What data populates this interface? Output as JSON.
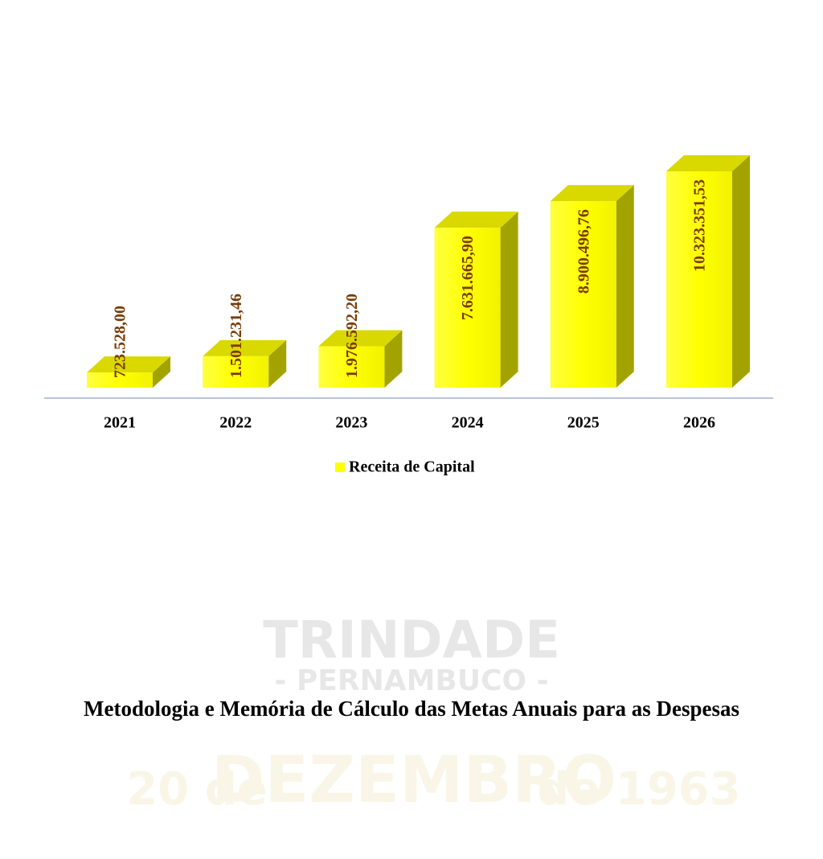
{
  "chart_data": {
    "type": "bar3d",
    "categories": [
      "2021",
      "2022",
      "2023",
      "2024",
      "2025",
      "2026"
    ],
    "series": [
      {
        "name": "Receita de Capital",
        "color": "#ffff00",
        "values": [
          723528.0,
          1501231.46,
          1976592.2,
          7631665.9,
          8900496.76,
          10323351.53
        ],
        "value_labels": [
          "723.528,00",
          "1.501.231,46",
          "1.976.592,20",
          "7.631.665,90",
          "8.900.496,76",
          "10.323.351,53"
        ]
      }
    ],
    "legend": "bottom"
  },
  "heading": "Metodologia e Memória de Cálculo das Metas Anuais para as Despesas",
  "watermark": {
    "name": "TRINDADE",
    "state": "- PERNAMBUCO -",
    "date": [
      "20 de",
      "DEZEMBRO",
      "de 1963"
    ]
  }
}
